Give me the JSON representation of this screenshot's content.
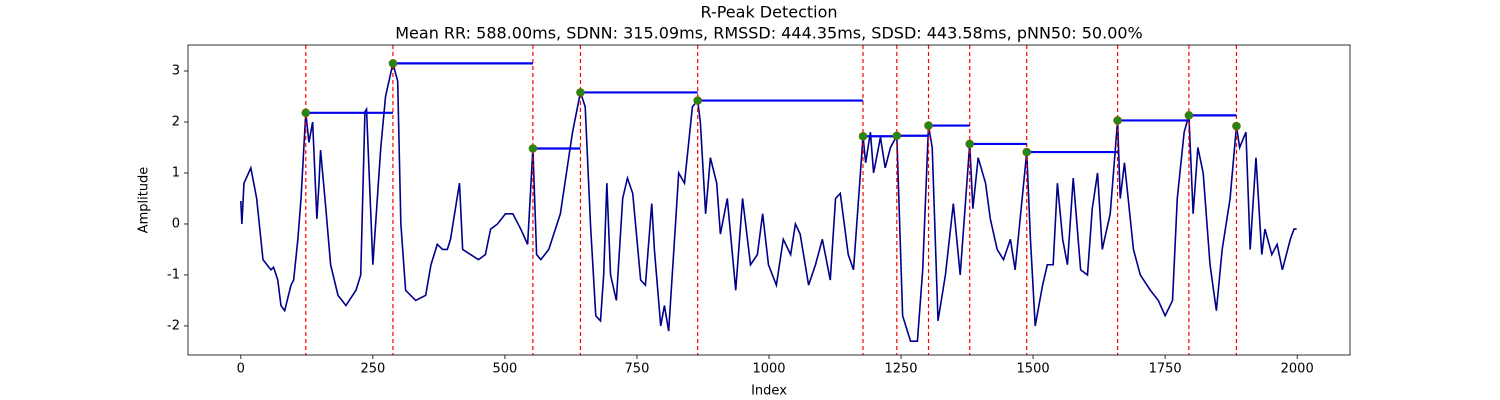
{
  "chart_data": {
    "type": "line",
    "title": "R-Peak Detection",
    "subtitle": "Mean RR: 588.00ms, SDNN: 315.09ms, RMSSD: 444.35ms, SDSD: 443.58ms, pNN50: 50.00%",
    "x_label": "Index",
    "y_label": "Amplitude",
    "xlim": [
      -100,
      2100
    ],
    "ylim": [
      -2.57,
      3.51
    ],
    "xticks": [
      0,
      250,
      500,
      750,
      1000,
      1250,
      1500,
      1750,
      2000
    ],
    "yticks": [
      -2,
      -1,
      0,
      1,
      2,
      3
    ],
    "grid": false,
    "series": [
      {
        "color": "#00008b",
        "x": [
          0,
          2,
          6,
          19,
          30,
          42,
          57,
          62,
          70,
          76,
          83,
          95,
          100,
          108,
          114,
          123,
          129,
          136,
          144,
          148,
          151,
          161,
          170,
          184,
          199,
          218,
          227,
          235,
          238,
          250,
          265,
          274,
          288,
          297,
          303,
          312,
          331,
          350,
          360,
          372,
          382,
          391,
          397,
          414,
          420,
          435,
          450,
          463,
          473,
          486,
          501,
          515,
          530,
          543,
          553,
          560,
          568,
          583,
          605,
          628,
          643,
          652,
          662,
          672,
          681,
          687,
          693,
          700,
          711,
          723,
          732,
          742,
          757,
          766,
          778,
          783,
          795,
          802,
          810,
          823,
          829,
          840,
          855,
          865,
          870,
          880,
          889,
          901,
          908,
          921,
          937,
          950,
          965,
          978,
          988,
          999,
          1014,
          1027,
          1041,
          1050,
          1059,
          1075,
          1088,
          1101,
          1116,
          1126,
          1135,
          1150,
          1160,
          1178,
          1183,
          1192,
          1198,
          1211,
          1220,
          1230,
          1242,
          1253,
          1268,
          1281,
          1291,
          1302,
          1309,
          1320,
          1334,
          1349,
          1362,
          1380,
          1386,
          1396,
          1410,
          1419,
          1432,
          1444,
          1457,
          1466,
          1488,
          1495,
          1504,
          1518,
          1527,
          1538,
          1546,
          1556,
          1565,
          1576,
          1590,
          1603,
          1612,
          1622,
          1631,
          1646,
          1660,
          1665,
          1673,
          1680,
          1690,
          1703,
          1722,
          1737,
          1750,
          1764,
          1773,
          1786,
          1795,
          1803,
          1812,
          1822,
          1835,
          1847,
          1858,
          1873,
          1885,
          1891,
          1903,
          1911,
          1914,
          1922,
          1933,
          1939,
          1952,
          1962,
          1972,
          1987,
          1994,
          1999
        ],
        "values": [
          0.45,
          0.0,
          0.8,
          1.1,
          0.5,
          -0.7,
          -0.9,
          -0.85,
          -1.1,
          -1.6,
          -1.7,
          -1.2,
          -1.1,
          -0.3,
          0.5,
          2.18,
          1.6,
          2.0,
          0.1,
          0.8,
          1.45,
          0.3,
          -0.8,
          -1.4,
          -1.6,
          -1.3,
          -1.0,
          2.2,
          2.25,
          -0.8,
          1.5,
          2.5,
          3.15,
          2.8,
          0.0,
          -1.3,
          -1.5,
          -1.4,
          -0.8,
          -0.4,
          -0.5,
          -0.5,
          -0.3,
          0.8,
          -0.5,
          -0.6,
          -0.7,
          -0.6,
          -0.1,
          0.0,
          0.2,
          0.2,
          -0.1,
          -0.4,
          1.48,
          -0.6,
          -0.7,
          -0.5,
          0.2,
          1.8,
          2.58,
          2.3,
          0.0,
          -1.8,
          -1.9,
          -1.0,
          0.8,
          -1.0,
          -1.5,
          0.5,
          0.9,
          0.6,
          -1.1,
          -1.2,
          0.4,
          -0.5,
          -2.0,
          -1.6,
          -2.1,
          0.0,
          1.0,
          0.8,
          2.3,
          2.42,
          2.0,
          0.2,
          1.3,
          0.8,
          -0.2,
          0.5,
          -1.3,
          0.5,
          -0.8,
          -0.6,
          0.2,
          -0.8,
          -1.2,
          -0.3,
          -0.6,
          0.0,
          -0.2,
          -1.2,
          -0.8,
          -0.3,
          -1.1,
          0.5,
          0.6,
          -0.6,
          -0.9,
          1.72,
          1.2,
          1.8,
          1.0,
          1.7,
          1.1,
          1.5,
          1.73,
          -1.8,
          -2.3,
          -2.3,
          -0.9,
          1.93,
          1.5,
          -1.9,
          -1.0,
          0.4,
          -1.0,
          1.57,
          0.3,
          1.3,
          0.8,
          0.1,
          -0.5,
          -0.7,
          -0.3,
          -0.9,
          1.41,
          -0.3,
          -2.0,
          -1.2,
          -0.8,
          -0.8,
          0.8,
          -0.3,
          -0.8,
          0.9,
          -0.9,
          -1.0,
          0.3,
          1.0,
          -0.5,
          0.2,
          2.03,
          0.5,
          1.2,
          0.5,
          -0.5,
          -1.0,
          -1.3,
          -1.5,
          -1.8,
          -1.5,
          0.5,
          1.8,
          2.13,
          0.2,
          1.5,
          1.0,
          -0.8,
          -1.7,
          -0.5,
          0.5,
          1.92,
          1.5,
          1.8,
          -0.5,
          0.0,
          1.3,
          -0.6,
          -0.1,
          -0.6,
          -0.4,
          -0.9,
          -0.3,
          -0.1,
          -0.1
        ]
      }
    ],
    "peaks": {
      "x": [
        123,
        288,
        553,
        643,
        865,
        1178,
        1242,
        1302,
        1380,
        1488,
        1660,
        1795,
        1885
      ],
      "values": [
        2.18,
        3.15,
        1.48,
        2.58,
        2.42,
        1.72,
        1.73,
        1.93,
        1.57,
        1.41,
        2.03,
        2.13,
        1.92
      ],
      "color": "#1a8a1a",
      "edge_color": "#6b6b00",
      "line_color": "#ff0000",
      "interval_color": "#0000ee"
    }
  }
}
